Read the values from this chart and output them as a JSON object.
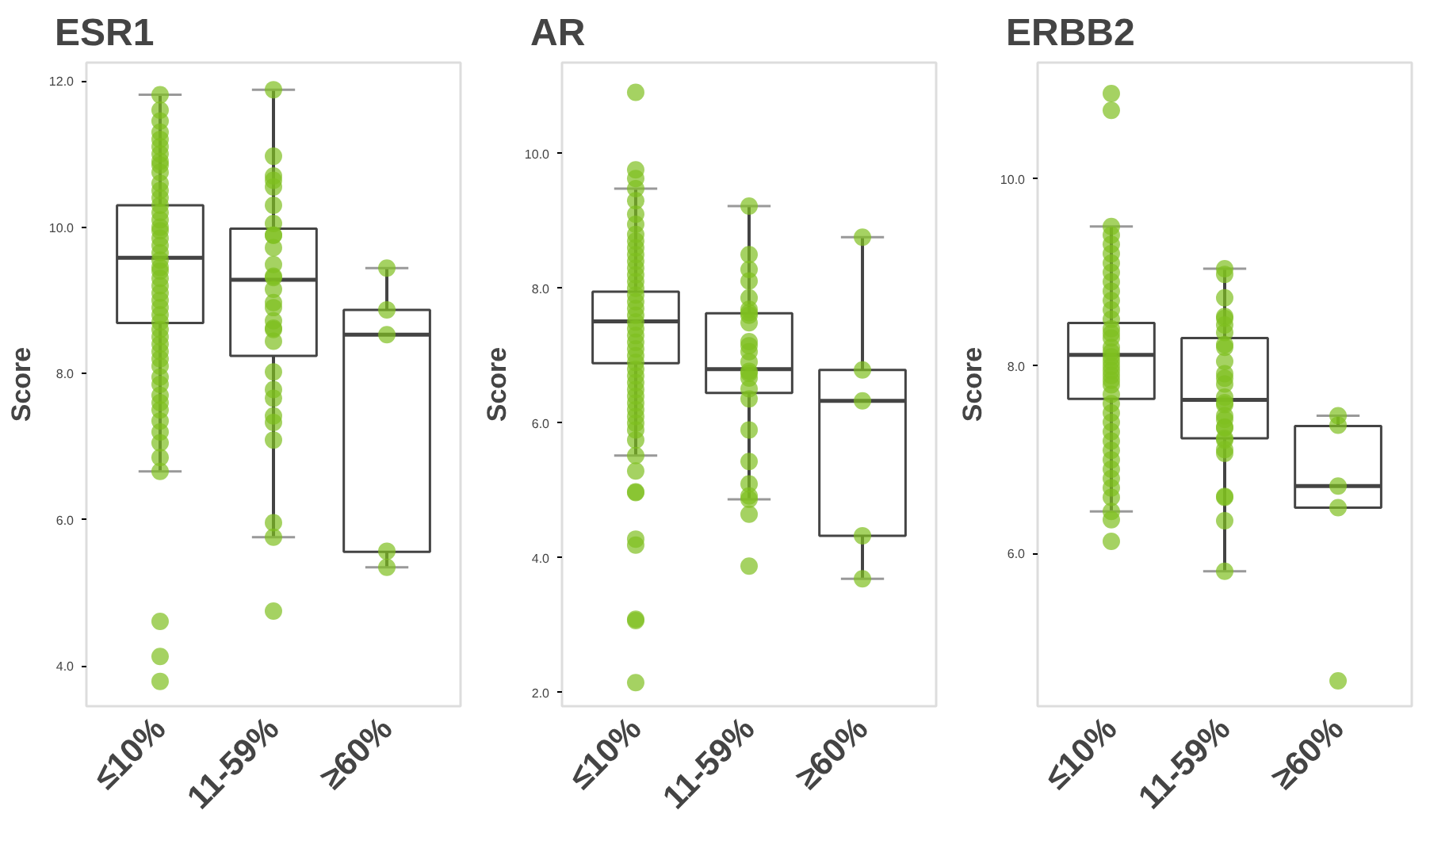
{
  "chart_data": [
    {
      "type": "box",
      "title": "ESR1",
      "ylabel": "Score",
      "categories": [
        "≤10%",
        "11-59%",
        "≥60%"
      ],
      "ylim": [
        3.45,
        12.25
      ],
      "yticks": [
        {
          "value": 4,
          "label": "4.0"
        },
        {
          "value": 6,
          "label": "6.0"
        },
        {
          "value": 8,
          "label": "8.0"
        },
        {
          "value": 10,
          "label": "10.0"
        },
        {
          "value": 12,
          "label": "12.0"
        }
      ],
      "grid": false,
      "marker": "circle",
      "series": [
        {
          "type": "box",
          "color": "#444444",
          "boxes": [
            {
              "low": 6.66,
              "q1": 8.69,
              "median": 9.58,
              "q3": 10.3,
              "high": 11.81
            },
            {
              "low": 5.76,
              "q1": 8.24,
              "median": 9.28,
              "q3": 9.98,
              "high": 11.88
            },
            {
              "low": 5.35,
              "q1": 5.56,
              "median": 8.53,
              "q3": 8.87,
              "high": 9.44
            }
          ]
        },
        {
          "type": "scatter",
          "color": "#7fbf1f",
          "x": [
            "≤10%",
            "≤10%",
            "≤10%",
            "≤10%",
            "≤10%",
            "≤10%",
            "≤10%",
            "≤10%",
            "≤10%",
            "≤10%",
            "≤10%",
            "≤10%",
            "≤10%",
            "≤10%",
            "≤10%",
            "≤10%",
            "≤10%",
            "≤10%",
            "≤10%",
            "≤10%",
            "≤10%",
            "≤10%",
            "≤10%",
            "≤10%",
            "≤10%",
            "≤10%",
            "≤10%",
            "≤10%",
            "≤10%",
            "≤10%",
            "≤10%",
            "≤10%",
            "≤10%",
            "≤10%",
            "≤10%",
            "≤10%",
            "≤10%",
            "≤10%",
            "≤10%",
            "≤10%",
            "≤10%",
            "≤10%",
            "≤10%",
            "≤10%",
            "≤10%",
            "≤10%",
            "≤10%",
            "≤10%",
            "≤10%",
            "≤10%",
            "11-59%",
            "11-59%",
            "11-59%",
            "11-59%",
            "11-59%",
            "11-59%",
            "11-59%",
            "11-59%",
            "11-59%",
            "11-59%",
            "11-59%",
            "11-59%",
            "11-59%",
            "11-59%",
            "11-59%",
            "11-59%",
            "11-59%",
            "11-59%",
            "11-59%",
            "11-59%",
            "11-59%",
            "11-59%",
            "11-59%",
            "11-59%",
            "11-59%",
            "11-59%",
            "11-59%",
            "11-59%",
            "11-59%",
            "≥60%",
            "≥60%",
            "≥60%",
            "≥60%",
            "≥60%"
          ],
          "values": [
            11.81,
            11.6,
            11.45,
            11.3,
            11.2,
            11.1,
            11.0,
            10.9,
            10.85,
            10.75,
            10.6,
            10.5,
            10.4,
            10.3,
            10.2,
            10.1,
            10.0,
            9.95,
            9.85,
            9.75,
            9.65,
            9.55,
            9.45,
            9.4,
            9.3,
            9.2,
            9.1,
            9.0,
            8.9,
            8.8,
            8.7,
            8.6,
            8.5,
            8.4,
            8.3,
            8.2,
            8.1,
            7.95,
            7.85,
            7.7,
            7.6,
            7.5,
            7.35,
            7.2,
            7.05,
            6.85,
            6.66,
            4.61,
            4.13,
            3.79,
            11.88,
            10.97,
            10.7,
            10.64,
            10.55,
            10.3,
            10.05,
            9.89,
            9.89,
            9.72,
            9.49,
            9.33,
            9.31,
            9.15,
            8.97,
            8.9,
            8.72,
            8.62,
            8.6,
            8.44,
            8.02,
            7.78,
            7.66,
            7.42,
            7.33,
            7.09,
            5.96,
            5.76,
            4.75,
            9.44,
            8.87,
            8.53,
            5.57,
            5.35
          ]
        }
      ]
    },
    {
      "type": "box",
      "title": "AR",
      "ylabel": "Score",
      "categories": [
        "≤10%",
        "11-59%",
        "≥60%"
      ],
      "ylim": [
        1.8,
        11.35
      ],
      "yticks": [
        {
          "value": 2,
          "label": "2.0"
        },
        {
          "value": 4,
          "label": "4.0"
        },
        {
          "value": 6,
          "label": "6.0"
        },
        {
          "value": 8,
          "label": "8.0"
        },
        {
          "value": 10,
          "label": "10.0"
        }
      ],
      "grid": false,
      "marker": "circle",
      "series": [
        {
          "type": "box",
          "color": "#444444",
          "boxes": [
            {
              "low": 5.52,
              "q1": 6.89,
              "median": 7.51,
              "q3": 7.95,
              "high": 9.48
            },
            {
              "low": 4.87,
              "q1": 6.45,
              "median": 6.8,
              "q3": 7.63,
              "high": 9.22
            },
            {
              "low": 3.69,
              "q1": 4.33,
              "median": 6.33,
              "q3": 6.79,
              "high": 8.76
            }
          ]
        },
        {
          "type": "scatter",
          "color": "#7fbf1f",
          "x": [
            "≤10%",
            "≤10%",
            "≤10%",
            "≤10%",
            "≤10%",
            "≤10%",
            "≤10%",
            "≤10%",
            "≤10%",
            "≤10%",
            "≤10%",
            "≤10%",
            "≤10%",
            "≤10%",
            "≤10%",
            "≤10%",
            "≤10%",
            "≤10%",
            "≤10%",
            "≤10%",
            "≤10%",
            "≤10%",
            "≤10%",
            "≤10%",
            "≤10%",
            "≤10%",
            "≤10%",
            "≤10%",
            "≤10%",
            "≤10%",
            "≤10%",
            "≤10%",
            "≤10%",
            "≤10%",
            "≤10%",
            "≤10%",
            "≤10%",
            "≤10%",
            "≤10%",
            "≤10%",
            "≤10%",
            "≤10%",
            "≤10%",
            "≤10%",
            "≤10%",
            "≤10%",
            "≤10%",
            "11-59%",
            "11-59%",
            "11-59%",
            "11-59%",
            "11-59%",
            "11-59%",
            "11-59%",
            "11-59%",
            "11-59%",
            "11-59%",
            "11-59%",
            "11-59%",
            "11-59%",
            "11-59%",
            "11-59%",
            "11-59%",
            "11-59%",
            "11-59%",
            "11-59%",
            "11-59%",
            "11-59%",
            "11-59%",
            "11-59%",
            "11-59%",
            "11-59%",
            "≥60%",
            "≥60%",
            "≥60%",
            "≥60%",
            "≥60%"
          ],
          "values": [
            10.91,
            9.76,
            9.63,
            9.48,
            9.3,
            9.1,
            8.95,
            8.8,
            8.7,
            8.6,
            8.5,
            8.4,
            8.3,
            8.2,
            8.1,
            8.0,
            7.9,
            7.8,
            7.7,
            7.6,
            7.5,
            7.4,
            7.3,
            7.2,
            7.1,
            7.0,
            6.9,
            6.8,
            6.7,
            6.6,
            6.5,
            6.4,
            6.3,
            6.2,
            6.1,
            6.0,
            5.9,
            5.75,
            5.52,
            5.29,
            4.98,
            4.97,
            4.28,
            4.19,
            3.09,
            3.07,
            2.15,
            9.22,
            8.5,
            8.28,
            8.11,
            7.86,
            7.69,
            7.64,
            7.6,
            7.49,
            7.21,
            7.15,
            7.06,
            6.91,
            6.77,
            6.74,
            6.67,
            6.51,
            6.36,
            5.9,
            5.43,
            5.1,
            4.92,
            4.87,
            4.65,
            3.88,
            8.76,
            6.79,
            6.33,
            4.33,
            3.69
          ]
        }
      ]
    },
    {
      "type": "box",
      "title": "ERBB2",
      "ylabel": "Score",
      "categories": [
        "≤10%",
        "11-59%",
        "≥60%"
      ],
      "ylim": [
        4.37,
        11.24
      ],
      "yticks": [
        {
          "value": 6,
          "label": "6.0"
        },
        {
          "value": 8,
          "label": "8.0"
        },
        {
          "value": 10,
          "label": "10.0"
        }
      ],
      "grid": false,
      "marker": "circle",
      "series": [
        {
          "type": "box",
          "color": "#444444",
          "boxes": [
            {
              "low": 6.45,
              "q1": 7.65,
              "median": 8.12,
              "q3": 8.46,
              "high": 9.49
            },
            {
              "low": 5.81,
              "q1": 7.23,
              "median": 7.64,
              "q3": 8.3,
              "high": 9.04
            },
            {
              "low": 6.49,
              "q1": 6.49,
              "median": 6.72,
              "q3": 7.36,
              "high": 7.47
            }
          ]
        },
        {
          "type": "scatter",
          "color": "#7fbf1f",
          "x": [
            "≤10%",
            "≤10%",
            "≤10%",
            "≤10%",
            "≤10%",
            "≤10%",
            "≤10%",
            "≤10%",
            "≤10%",
            "≤10%",
            "≤10%",
            "≤10%",
            "≤10%",
            "≤10%",
            "≤10%",
            "≤10%",
            "≤10%",
            "≤10%",
            "≤10%",
            "≤10%",
            "≤10%",
            "≤10%",
            "≤10%",
            "≤10%",
            "≤10%",
            "≤10%",
            "≤10%",
            "≤10%",
            "≤10%",
            "≤10%",
            "≤10%",
            "≤10%",
            "≤10%",
            "≤10%",
            "≤10%",
            "≤10%",
            "≤10%",
            "≤10%",
            "≤10%",
            "≤10%",
            "11-59%",
            "11-59%",
            "11-59%",
            "11-59%",
            "11-59%",
            "11-59%",
            "11-59%",
            "11-59%",
            "11-59%",
            "11-59%",
            "11-59%",
            "11-59%",
            "11-59%",
            "11-59%",
            "11-59%",
            "11-59%",
            "11-59%",
            "11-59%",
            "11-59%",
            "11-59%",
            "11-59%",
            "11-59%",
            "11-59%",
            "11-59%",
            "11-59%",
            "11-59%",
            "11-59%",
            "11-59%",
            "≥60%",
            "≥60%",
            "≥60%",
            "≥60%",
            "≥60%"
          ],
          "values": [
            10.91,
            10.73,
            9.49,
            9.4,
            9.3,
            9.2,
            9.1,
            9.0,
            8.9,
            8.8,
            8.7,
            8.6,
            8.5,
            8.4,
            8.35,
            8.3,
            8.2,
            8.15,
            8.1,
            8.05,
            8.0,
            7.95,
            7.9,
            7.85,
            7.8,
            7.7,
            7.6,
            7.5,
            7.4,
            7.3,
            7.2,
            7.1,
            7.0,
            6.9,
            6.8,
            6.7,
            6.6,
            6.45,
            6.36,
            6.13,
            9.04,
            8.98,
            8.73,
            8.53,
            8.51,
            8.44,
            8.36,
            8.23,
            8.2,
            8.05,
            7.92,
            7.87,
            7.81,
            7.67,
            7.61,
            7.59,
            7.47,
            7.43,
            7.35,
            7.34,
            7.23,
            7.21,
            7.11,
            7.07,
            6.61,
            6.6,
            6.35,
            5.81,
            7.47,
            7.37,
            6.72,
            6.49,
            4.64
          ]
        }
      ]
    }
  ]
}
